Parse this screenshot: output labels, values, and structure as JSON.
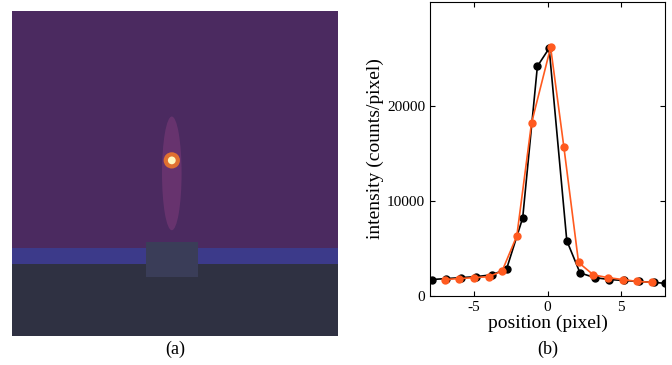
{
  "chart_data": [
    {
      "type": "image",
      "caption": "(a)"
    },
    {
      "type": "line",
      "caption": "(b)",
      "x_label": "position (pixel)",
      "y_label": "intensity (counts/pixel)",
      "xlim": [
        -8,
        8
      ],
      "xticks": [
        -5,
        0,
        5
      ],
      "ylim": [
        0,
        31000
      ],
      "yticks": [
        0,
        10000,
        20000
      ],
      "series": [
        {
          "color": "#000000",
          "marker": "o",
          "line_style": "solid",
          "x": [
            -7.9,
            -6.9,
            -5.9,
            -4.9,
            -3.8,
            -2.8,
            -1.7,
            -0.7,
            0.1,
            1.3,
            2.2,
            3.2,
            4.2,
            5.2,
            6.2,
            7.2,
            8.0
          ],
          "values": [
            1700,
            1800,
            1900,
            2000,
            2200,
            2800,
            8200,
            24200,
            26100,
            5800,
            2400,
            1900,
            1700,
            1600,
            1500,
            1400,
            1300
          ]
        },
        {
          "color": "#ff5a1f",
          "marker": "o",
          "line_style": "solid",
          "x": [
            -7.0,
            -6.0,
            -5.0,
            -4.0,
            -3.1,
            -2.1,
            -1.1,
            0.2,
            1.1,
            2.1,
            3.1,
            4.1,
            5.1,
            6.1,
            7.1
          ],
          "values": [
            1700,
            1800,
            1900,
            2000,
            2600,
            6300,
            18200,
            26200,
            15700,
            3500,
            2200,
            1900,
            1700,
            1500,
            1400
          ]
        }
      ]
    }
  ]
}
